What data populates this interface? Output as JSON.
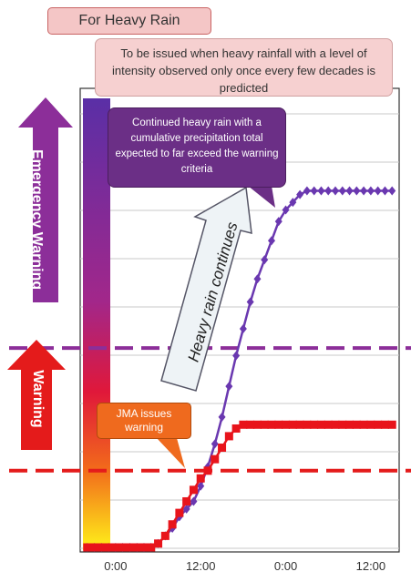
{
  "title": "For Heavy Rain",
  "note": "To be issued when heavy rainfall with a level of intensity observed only once every few decades is predicted",
  "labels": {
    "emergency_warning": "Emergency Warning",
    "warning": "Warning",
    "heavy_rain_continues": "Heavy rain continues"
  },
  "callouts": {
    "purple": "Continued heavy rain with a cumulative precipitation total expected to far exceed the warning criteria",
    "orange": "JMA issues warning"
  },
  "colors": {
    "emergency": "#8c2e99",
    "warning": "#e41b1b",
    "purple_series": "#6a38b0",
    "red_series": "#e8141b",
    "callout_purple": "#6b2f86",
    "callout_orange": "#ef6a1e"
  },
  "chart_data": {
    "type": "line",
    "x_ticks": [
      "0:00",
      "12:00",
      "0:00",
      "12:00"
    ],
    "xlim": [
      -5,
      40
    ],
    "ylim": [
      0,
      100
    ],
    "grid": true,
    "thresholds": [
      {
        "name": "Emergency Warning",
        "value": 52,
        "color": "#8c2e99"
      },
      {
        "name": "Warning",
        "value": 20,
        "color": "#e41b1b"
      }
    ],
    "series": [
      {
        "color": "#6a38b0",
        "marker": "diamond",
        "x": [
          -4,
          -3,
          -2,
          -1,
          0,
          1,
          2,
          3,
          4,
          5,
          6,
          7,
          8,
          9,
          10,
          11,
          12,
          13,
          14,
          15,
          16,
          17,
          18,
          19,
          20,
          21,
          22,
          23,
          24,
          25,
          26,
          27,
          28,
          29,
          30,
          31,
          32,
          33,
          34,
          35,
          36,
          37,
          38,
          39
        ],
        "y": [
          0,
          0,
          0,
          0,
          0,
          0,
          0,
          0,
          0,
          0,
          1,
          3,
          5,
          8,
          10,
          12,
          16,
          21,
          27,
          34,
          42,
          50,
          57,
          64,
          70,
          75,
          80,
          85,
          88,
          90,
          92,
          93,
          93,
          93,
          93,
          93,
          93,
          93,
          93,
          93,
          93,
          93,
          93,
          93
        ]
      },
      {
        "color": "#e8141b",
        "marker": "square",
        "x": [
          -4,
          -3,
          -2,
          -1,
          0,
          1,
          2,
          3,
          4,
          5,
          6,
          7,
          8,
          9,
          10,
          11,
          12,
          13,
          14,
          15,
          16,
          17,
          18,
          19,
          20,
          21,
          22,
          23,
          24,
          25,
          26,
          27,
          28,
          29,
          30,
          31,
          32,
          33,
          34,
          35,
          36,
          37,
          38,
          39
        ],
        "y": [
          0,
          0,
          0,
          0,
          0,
          0,
          0,
          0,
          0,
          0,
          1,
          3,
          6,
          9,
          12,
          15,
          18,
          20,
          23,
          26,
          29,
          31,
          32,
          32,
          32,
          32,
          32,
          32,
          32,
          32,
          32,
          32,
          32,
          32,
          32,
          32,
          32,
          32,
          32,
          32,
          32,
          32,
          32,
          32
        ]
      }
    ]
  }
}
